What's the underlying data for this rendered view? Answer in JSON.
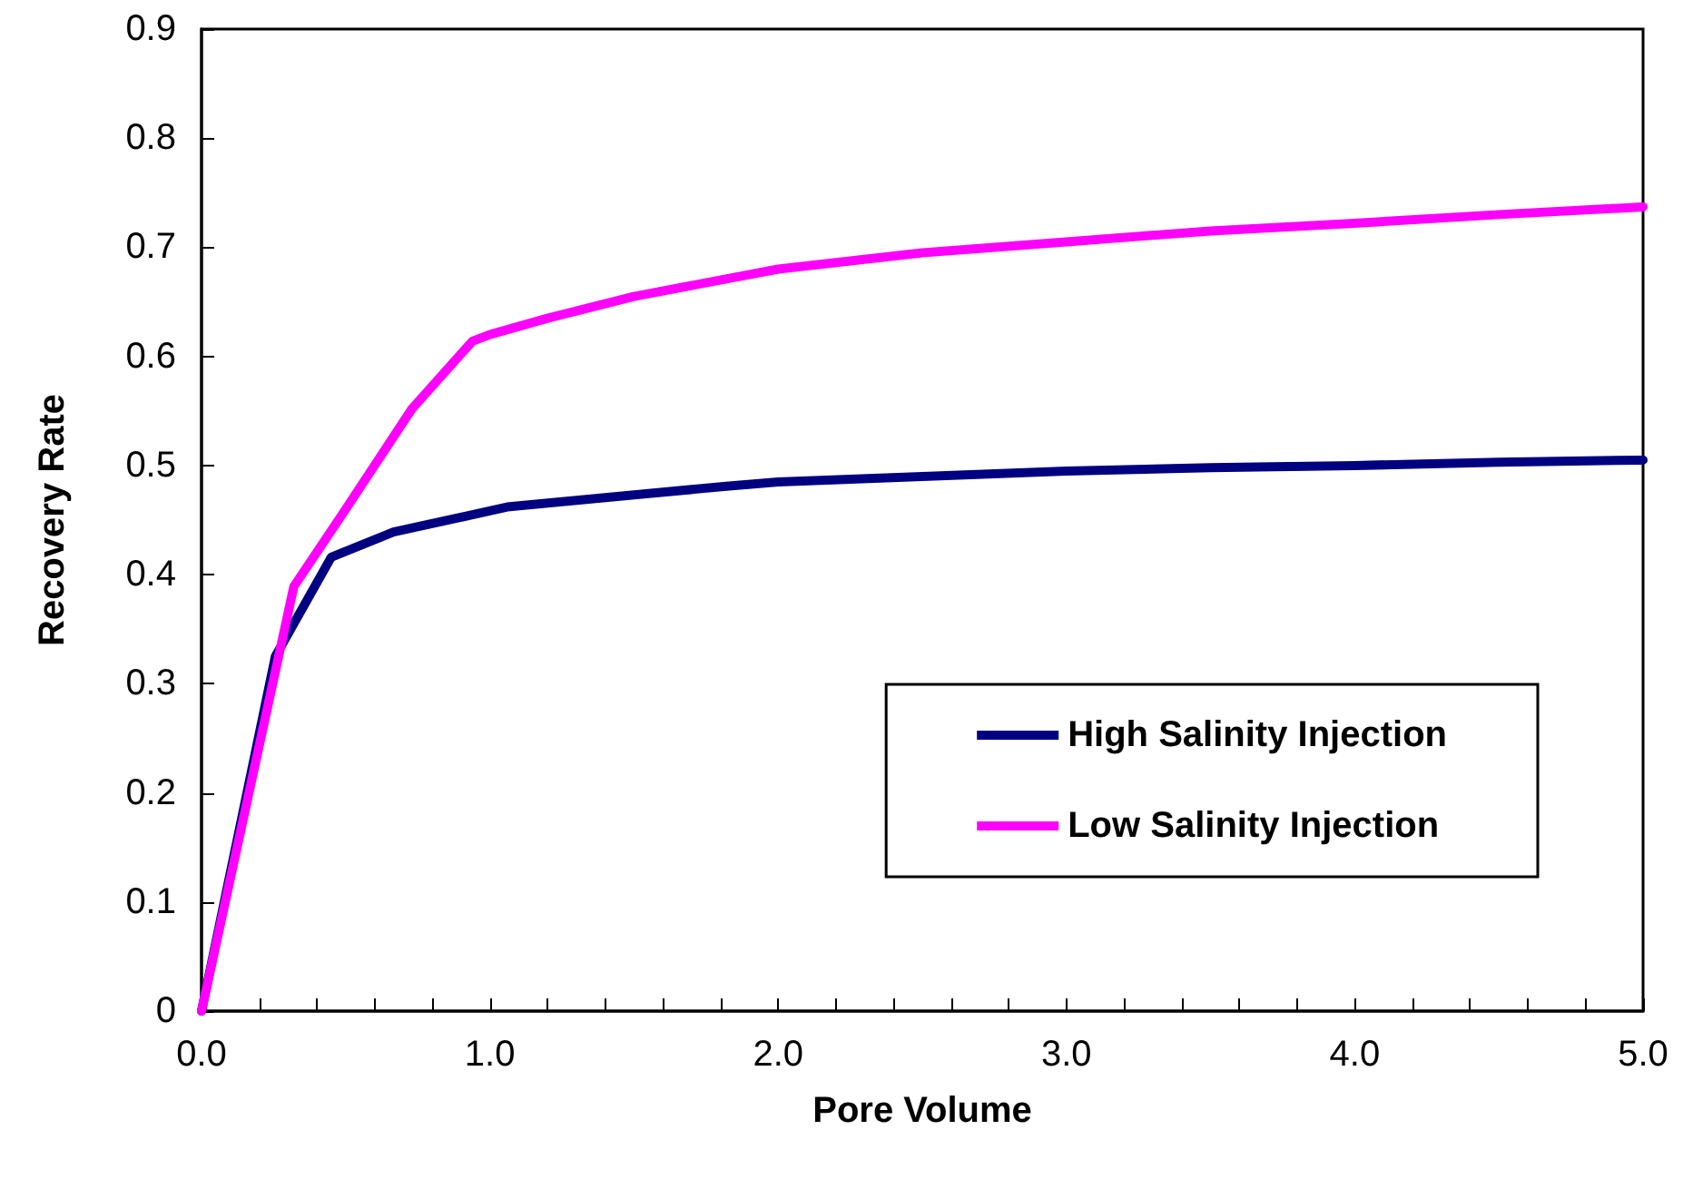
{
  "chart_data": {
    "type": "line",
    "xlabel": "Pore Volume",
    "ylabel": "Recovery Rate",
    "series": [
      {
        "name": "High Salinity Injection",
        "color": "#000080",
        "x": [
          0,
          0.256,
          0.45,
          0.666,
          1.06,
          1.5,
          1.82,
          2.0,
          2.5,
          3.0,
          3.5,
          4.0,
          4.5,
          5.0
        ],
        "values": [
          0,
          0.325,
          0.416,
          0.439,
          0.462,
          0.473,
          0.481,
          0.485,
          0.49,
          0.495,
          0.498,
          0.5,
          0.503,
          0.505
        ]
      },
      {
        "name": "Low Salinity Injection",
        "color": "#ff00ff",
        "x": [
          0,
          0.32,
          0.5,
          0.73,
          0.94,
          1.0,
          1.2,
          1.5,
          2.0,
          2.5,
          3.0,
          3.5,
          4.0,
          4.5,
          5.0
        ],
        "values": [
          0,
          0.389,
          0.46,
          0.552,
          0.614,
          0.62,
          0.635,
          0.655,
          0.68,
          0.695,
          0.705,
          0.715,
          0.722,
          0.73,
          0.737
        ]
      }
    ],
    "xlim": [
      0,
      5
    ],
    "xticks": [
      {
        "value": 0,
        "label": "0.0"
      },
      {
        "value": 0.2,
        "label": null
      },
      {
        "value": 0.4,
        "label": null
      },
      {
        "value": 0.6,
        "label": null
      },
      {
        "value": 0.8,
        "label": null
      },
      {
        "value": 1,
        "label": "1.0"
      },
      {
        "value": 1.2,
        "label": null
      },
      {
        "value": 1.4,
        "label": null
      },
      {
        "value": 1.6,
        "label": null
      },
      {
        "value": 1.8,
        "label": null
      },
      {
        "value": 2,
        "label": "2.0"
      },
      {
        "value": 2.2,
        "label": null
      },
      {
        "value": 2.4,
        "label": null
      },
      {
        "value": 2.6,
        "label": null
      },
      {
        "value": 2.8,
        "label": null
      },
      {
        "value": 3,
        "label": "3.0"
      },
      {
        "value": 3.2,
        "label": null
      },
      {
        "value": 3.4,
        "label": null
      },
      {
        "value": 3.6,
        "label": null
      },
      {
        "value": 3.8,
        "label": null
      },
      {
        "value": 4,
        "label": "4.0"
      },
      {
        "value": 4.2,
        "label": null
      },
      {
        "value": 4.4,
        "label": null
      },
      {
        "value": 4.6,
        "label": null
      },
      {
        "value": 4.8,
        "label": null
      },
      {
        "value": 5,
        "label": "5.0"
      }
    ],
    "ylim": [
      0,
      0.9
    ],
    "yticks": [
      0,
      0.1,
      0.2,
      0.3,
      0.4,
      0.5,
      0.6,
      0.7,
      0.8,
      0.9
    ],
    "grid": false,
    "legend": "bottom right",
    "marker": "none",
    "line_style": "solid"
  }
}
